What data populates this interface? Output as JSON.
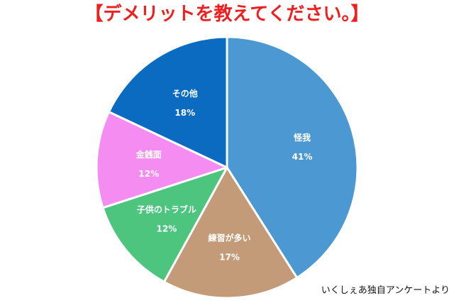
{
  "title": "【デメリットを教えてください。】",
  "source": "いくしぇあ独自アンケートより",
  "chart_data": {
    "type": "pie",
    "title": "【デメリットを教えてください。】",
    "start_angle_deg": 0,
    "direction": "clockwise",
    "slices": [
      {
        "label": "怪我",
        "value": 41,
        "display": "41%",
        "color": "#4b98d2",
        "text_color": "#ffffff"
      },
      {
        "label": "練習が多い",
        "value": 17,
        "display": "17%",
        "color": "#c49b79",
        "text_color": "#ffffff"
      },
      {
        "label": "子供のトラブル",
        "value": 12,
        "display": "12%",
        "color": "#4ec57f",
        "text_color": "#ffffff"
      },
      {
        "label": "金銭面",
        "value": 12,
        "display": "12%",
        "color": "#f58cf2",
        "text_color": "#ffffff"
      },
      {
        "label": "その他",
        "value": 18,
        "display": "18%",
        "color": "#0a6bc0",
        "text_color": "#ffffff"
      }
    ]
  }
}
